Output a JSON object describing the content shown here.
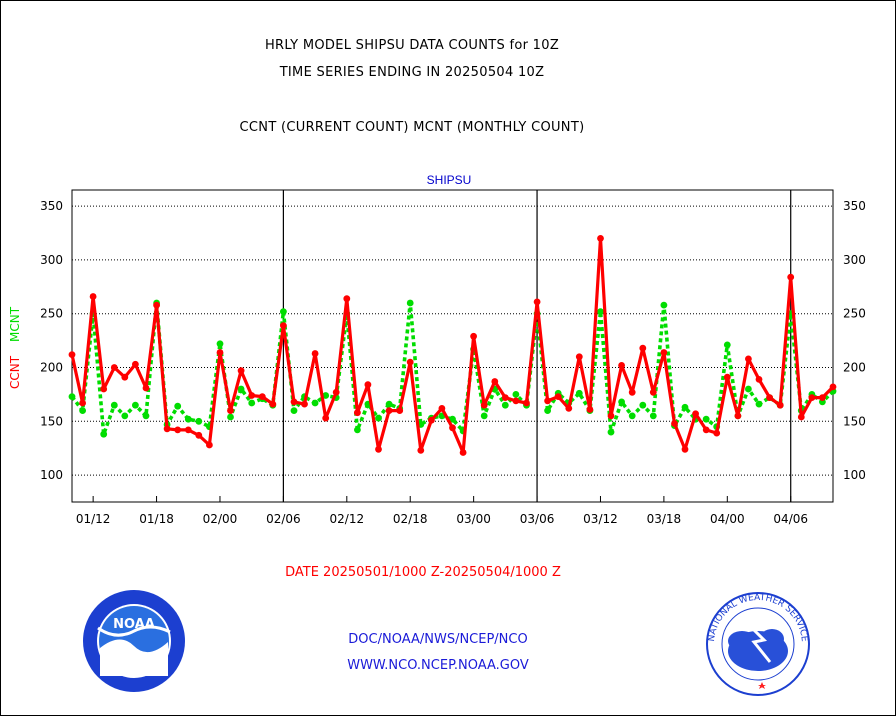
{
  "header": {
    "title_line1": "HRLY MODEL SHIPSU DATA COUNTS for 10Z",
    "title_line2": "TIME SERIES ENDING IN 20250504 10Z",
    "title_line3": "CCNT (CURRENT COUNT) MCNT (MONTHLY COUNT)"
  },
  "footer": {
    "date_range": "DATE 20250501/1000 Z-20250504/1000 Z",
    "org_path": "DOC/NOAA/NWS/NCEP/NCO",
    "website": "WWW.NCO.NCEP.NOAA.GOV"
  },
  "logos": {
    "left": "NOAA",
    "right": "NATIONAL WEATHER SERVICE"
  },
  "colors": {
    "ccnt": "#ff0000",
    "mcnt": "#00dd00",
    "axis_title": "#0000cc",
    "credits": "#1a1ad8"
  },
  "chart_data": {
    "type": "line",
    "title": "SHIPSU",
    "ylabel_ccnt": "CCNT",
    "ylabel_mcnt": "MCNT",
    "ylim": [
      75,
      365
    ],
    "yticks": [
      100,
      150,
      200,
      250,
      300,
      350
    ],
    "grid": "horizontal dotted",
    "xtick_labels": [
      "01/12",
      "01/18",
      "02/00",
      "02/06",
      "02/12",
      "02/18",
      "03/00",
      "03/06",
      "03/12",
      "03/18",
      "04/00",
      "04/06"
    ],
    "xtick_positions": [
      2,
      8,
      14,
      20,
      26,
      32,
      38,
      44,
      50,
      56,
      62,
      68
    ],
    "day_boundaries": [
      20,
      44,
      68
    ],
    "x_points": 73,
    "series": [
      {
        "name": "CCNT",
        "style": "solid",
        "values": [
          212,
          167,
          266,
          180,
          200,
          191,
          203,
          181,
          258,
          143,
          142,
          142,
          137,
          128,
          214,
          160,
          197,
          174,
          173,
          166,
          239,
          168,
          166,
          213,
          153,
          177,
          264,
          158,
          184,
          124,
          160,
          160,
          205,
          123,
          151,
          162,
          144,
          121,
          229,
          165,
          187,
          172,
          169,
          167,
          261,
          169,
          173,
          162,
          210,
          161,
          320,
          155,
          202,
          177,
          218,
          177,
          214,
          148,
          124,
          157,
          142,
          139,
          191,
          155,
          208,
          189,
          172,
          165,
          284,
          154,
          172,
          172,
          182
        ]
      },
      {
        "name": "MCNT",
        "style": "dotted",
        "values": [
          173,
          160,
          250,
          138,
          165,
          155,
          165,
          155,
          260,
          147,
          164,
          152,
          150,
          145,
          222,
          154,
          180,
          167,
          171,
          165,
          252,
          160,
          173,
          167,
          174,
          172,
          250,
          142,
          166,
          153,
          166,
          162,
          260,
          147,
          153,
          155,
          152,
          141,
          217,
          155,
          180,
          165,
          175,
          165,
          250,
          160,
          176,
          167,
          176,
          160,
          252,
          140,
          168,
          155,
          165,
          155,
          258,
          146,
          163,
          152,
          152,
          145,
          221,
          155,
          180,
          166,
          172,
          165,
          250,
          160,
          175,
          168,
          178
        ]
      }
    ]
  }
}
